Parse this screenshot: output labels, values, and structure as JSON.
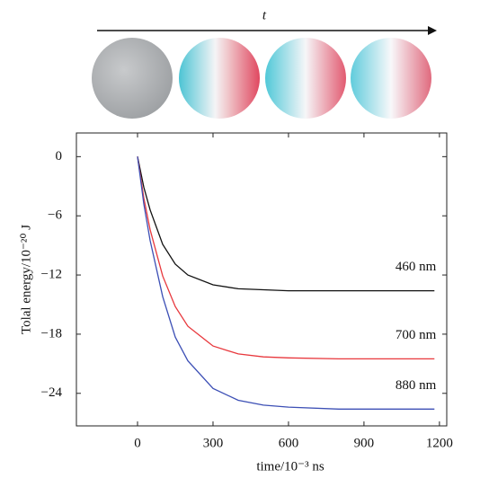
{
  "chart_data": {
    "type": "line",
    "arrow_label": "t",
    "x_label": "time/10⁻³ ns",
    "y_label": "Tolal energy/10⁻²⁰ J",
    "x": [
      0,
      25,
      50,
      100,
      150,
      200,
      300,
      400,
      500,
      600,
      800,
      1000,
      1180
    ],
    "series": [
      {
        "name": "460 nm",
        "color": "#111111",
        "values": [
          0,
          -3.1,
          -5.4,
          -8.9,
          -10.9,
          -12.0,
          -13.0,
          -13.4,
          -13.5,
          -13.6,
          -13.6,
          -13.6,
          -13.6
        ]
      },
      {
        "name": "700 nm",
        "color": "#e8383d",
        "values": [
          0,
          -4.2,
          -7.4,
          -12.1,
          -15.2,
          -17.2,
          -19.2,
          -20.0,
          -20.3,
          -20.4,
          -20.5,
          -20.5,
          -20.5
        ]
      },
      {
        "name": "880 nm",
        "color": "#3c4fb5",
        "values": [
          0,
          -4.8,
          -8.5,
          -14.2,
          -18.3,
          -20.7,
          -23.5,
          -24.7,
          -25.2,
          -25.4,
          -25.6,
          -25.6,
          -25.6
        ]
      }
    ],
    "xlim": [
      -243,
      1229
    ],
    "ylim": [
      -27.3,
      2.4
    ],
    "xticks": [
      0,
      300,
      600,
      900,
      1200
    ],
    "yticks": [
      0,
      {
        "value": -6,
        "label": "−6"
      },
      {
        "value": -12,
        "label": "−12"
      },
      {
        "value": -18,
        "label": "−18"
      },
      {
        "value": -24,
        "label": "−24"
      }
    ]
  }
}
